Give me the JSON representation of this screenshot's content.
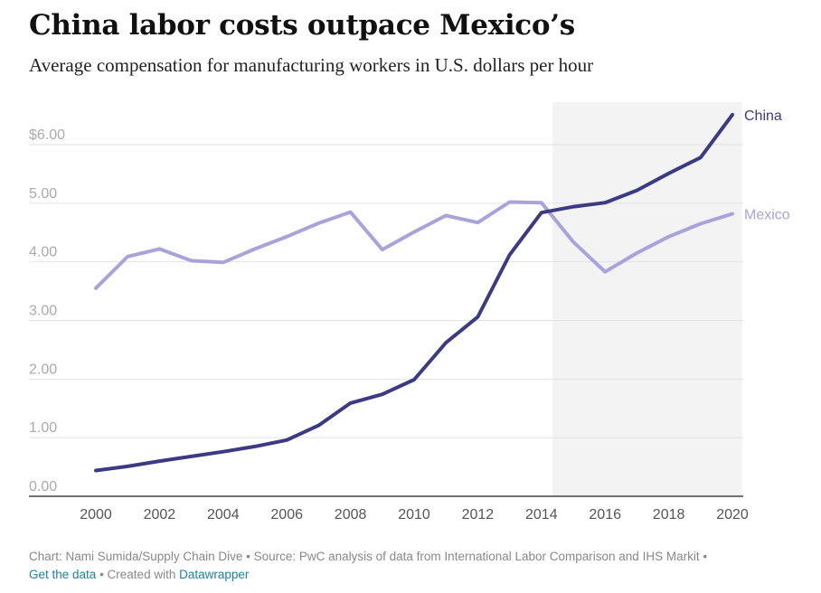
{
  "header": {
    "title": "China labor costs outpace Mexico’s",
    "subtitle": "Average compensation for manufacturing workers in U.S. dollars per hour"
  },
  "footer": {
    "credit": "Chart: Nami Sumida/Supply Chain Dive",
    "separator": " • ",
    "source": "Source: PwC analysis of data from International Labor Comparison and IHS Markit",
    "get_data_link": "Get the data",
    "created_with": "Created with",
    "datawrapper_link": "Datawrapper"
  },
  "colors": {
    "china": "#3d3a85",
    "mexico": "#a9a3dc",
    "shade": "#f3f3f3",
    "grid": "#e2e2e2",
    "tick_label": "#aaaaaa",
    "x_label": "#555555"
  },
  "chart_data": {
    "type": "line",
    "title": "China labor costs outpace Mexico’s",
    "subtitle": "Average compensation for manufacturing workers in U.S. dollars per hour",
    "xlabel": "",
    "ylabel": "",
    "xlim": [
      2000,
      2020
    ],
    "ylim": [
      0,
      6.6
    ],
    "y_ticks": [
      0,
      1,
      2,
      3,
      4,
      5,
      6
    ],
    "y_tick_labels": [
      "0.00",
      "1.00",
      "2.00",
      "3.00",
      "4.00",
      "5.00",
      "$6.00"
    ],
    "x_ticks": [
      2000,
      2002,
      2004,
      2006,
      2008,
      2010,
      2012,
      2014,
      2016,
      2018,
      2020
    ],
    "x_tick_labels": [
      "2000",
      "2002",
      "2004",
      "2006",
      "2008",
      "2010",
      "2012",
      "2014",
      "2016",
      "2018",
      "2020"
    ],
    "grid": true,
    "legend": "direct labels at line ends",
    "shaded_range": [
      2014.35,
      2020.3
    ],
    "x": [
      2000,
      2001,
      2002,
      2003,
      2004,
      2005,
      2006,
      2007,
      2008,
      2009,
      2010,
      2011,
      2012,
      2013,
      2014,
      2015,
      2016,
      2017,
      2018,
      2019,
      2020
    ],
    "series": [
      {
        "name": "China",
        "values": [
          0.44,
          0.51,
          0.6,
          0.68,
          0.76,
          0.85,
          0.96,
          1.21,
          1.59,
          1.74,
          1.99,
          2.62,
          3.06,
          4.12,
          4.84,
          4.94,
          5.01,
          5.22,
          5.51,
          5.78,
          6.51
        ]
      },
      {
        "name": "Mexico",
        "values": [
          3.55,
          4.09,
          4.22,
          4.02,
          3.99,
          4.22,
          4.43,
          4.66,
          4.85,
          4.21,
          4.51,
          4.79,
          4.67,
          5.02,
          5.01,
          4.34,
          3.83,
          4.15,
          4.43,
          4.65,
          4.82
        ]
      }
    ]
  }
}
